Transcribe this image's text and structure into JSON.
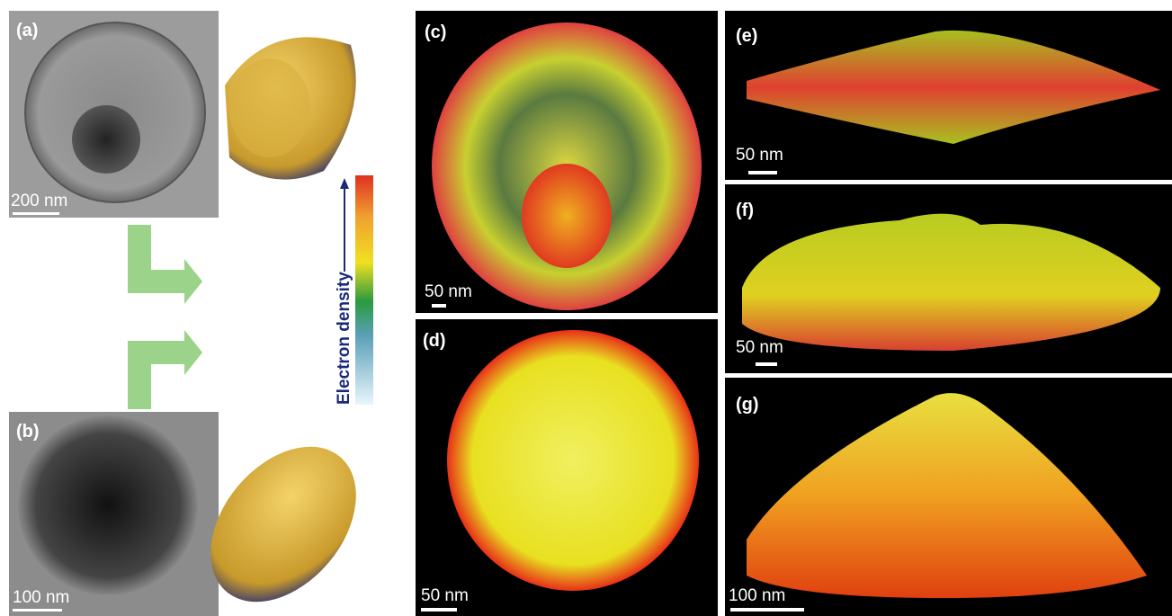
{
  "panels": [
    {
      "label": "(a)",
      "scale": "200 nm"
    },
    {
      "label": "(b)",
      "scale": "100 nm"
    },
    {
      "label": "(c)",
      "scale": "50 nm"
    },
    {
      "label": "(d)",
      "scale": "50 nm"
    },
    {
      "label": "(e)",
      "scale": "50 nm"
    },
    {
      "label": "(f)",
      "scale": "50 nm"
    },
    {
      "label": "(g)",
      "scale": "100 nm"
    }
  ],
  "colorbar": {
    "label": "Electron density"
  }
}
